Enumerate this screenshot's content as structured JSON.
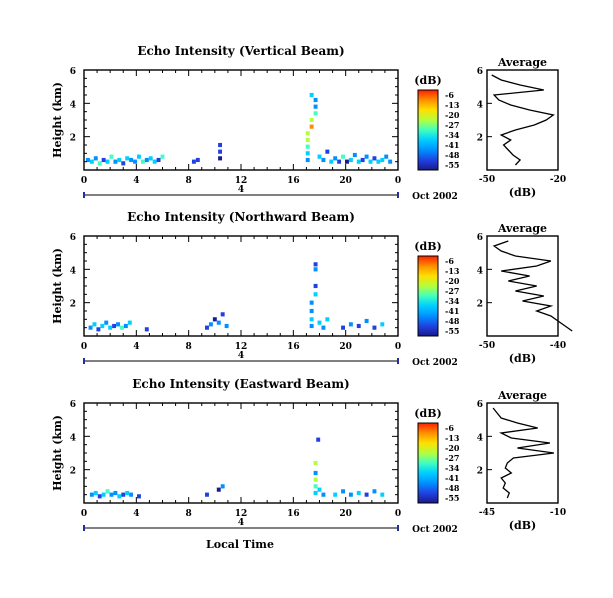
{
  "figure": {
    "xlabel": "Local Time",
    "colorbar_unit": "(dB)",
    "colorbar_ticks": [
      "-6",
      "-13",
      "-20",
      "-27",
      "-34",
      "-41",
      "-48",
      "-55"
    ],
    "colormap": [
      "#ff2000",
      "#ff8c00",
      "#ffe000",
      "#b0ff40",
      "#40ffc0",
      "#00d0ff",
      "#0090ff",
      "#2040e0",
      "#1a1a8c"
    ],
    "date_label": "Oct 2002",
    "day_label": "4",
    "avg_title": "Average",
    "avg_xlabel": "(dB)"
  },
  "chart_data": [
    {
      "type": "heatmap",
      "title": "Echo Intensity (Vertical Beam)",
      "ylabel": "Height (km)",
      "xlim": [
        0,
        24
      ],
      "ylim": [
        0,
        6
      ],
      "xticks": [
        "0",
        "4",
        "8",
        "12",
        "16",
        "20",
        "0"
      ],
      "yticks": [
        "6",
        "4",
        "2"
      ],
      "clim": [
        -55,
        -6
      ],
      "cells": [
        [
          0.3,
          0.6,
          -45
        ],
        [
          0.6,
          0.5,
          -35
        ],
        [
          0.9,
          0.7,
          -40
        ],
        [
          1.2,
          0.4,
          -30
        ],
        [
          1.5,
          0.6,
          -48
        ],
        [
          1.8,
          0.5,
          -38
        ],
        [
          2.1,
          0.8,
          -33
        ],
        [
          2.4,
          0.5,
          -42
        ],
        [
          2.7,
          0.6,
          -36
        ],
        [
          3.0,
          0.4,
          -50
        ],
        [
          3.3,
          0.7,
          -34
        ],
        [
          3.6,
          0.6,
          -40
        ],
        [
          3.9,
          0.5,
          -44
        ],
        [
          4.2,
          0.8,
          -37
        ],
        [
          4.5,
          0.5,
          -31
        ],
        [
          4.8,
          0.6,
          -45
        ],
        [
          5.1,
          0.7,
          -39
        ],
        [
          5.4,
          0.5,
          -35
        ],
        [
          5.7,
          0.6,
          -47
        ],
        [
          6.0,
          0.8,
          -33
        ],
        [
          8.4,
          0.5,
          -50
        ],
        [
          8.7,
          0.6,
          -46
        ],
        [
          10.4,
          0.7,
          -52
        ],
        [
          10.4,
          1.1,
          -50
        ],
        [
          10.4,
          1.5,
          -47
        ],
        [
          17.1,
          0.6,
          -42
        ],
        [
          17.1,
          1.0,
          -37
        ],
        [
          17.1,
          1.4,
          -30
        ],
        [
          17.1,
          1.8,
          -27
        ],
        [
          17.1,
          2.2,
          -22
        ],
        [
          17.4,
          2.6,
          -15
        ],
        [
          17.4,
          3.0,
          -25
        ],
        [
          17.7,
          3.4,
          -33
        ],
        [
          17.7,
          3.8,
          -40
        ],
        [
          17.7,
          4.2,
          -45
        ],
        [
          17.4,
          4.5,
          -38
        ],
        [
          18.0,
          0.8,
          -36
        ],
        [
          18.3,
          0.6,
          -43
        ],
        [
          18.6,
          1.1,
          -48
        ],
        [
          18.9,
          0.5,
          -35
        ],
        [
          19.2,
          0.7,
          -40
        ],
        [
          19.5,
          0.5,
          -46
        ],
        [
          19.8,
          0.8,
          -33
        ],
        [
          20.1,
          0.5,
          -52
        ],
        [
          20.4,
          0.6,
          -38
        ],
        [
          20.7,
          0.9,
          -44
        ],
        [
          21.0,
          0.5,
          -35
        ],
        [
          21.3,
          0.6,
          -50
        ],
        [
          21.6,
          0.8,
          -41
        ],
        [
          21.9,
          0.5,
          -36
        ],
        [
          22.2,
          0.7,
          -48
        ],
        [
          22.5,
          0.5,
          -39
        ],
        [
          22.8,
          0.6,
          -34
        ],
        [
          23.1,
          0.8,
          -45
        ],
        [
          23.4,
          0.5,
          -40
        ]
      ],
      "average": {
        "xlim": [
          -50,
          -20
        ],
        "xticks": [
          "-50",
          "-20"
        ],
        "yticks": [
          "6",
          "4",
          "2"
        ],
        "profile": [
          [
            0.3,
            -38
          ],
          [
            0.6,
            -36
          ],
          [
            0.9,
            -39
          ],
          [
            1.2,
            -41
          ],
          [
            1.5,
            -43
          ],
          [
            1.8,
            -40
          ],
          [
            2.1,
            -44
          ],
          [
            2.4,
            -38
          ],
          [
            2.7,
            -30
          ],
          [
            3.0,
            -25
          ],
          [
            3.3,
            -22
          ],
          [
            3.6,
            -32
          ],
          [
            3.9,
            -40
          ],
          [
            4.2,
            -45
          ],
          [
            4.5,
            -47
          ],
          [
            4.8,
            -26
          ],
          [
            5.1,
            -36
          ],
          [
            5.4,
            -44
          ],
          [
            5.7,
            -48
          ]
        ]
      }
    },
    {
      "type": "heatmap",
      "title": "Echo Intensity (Northward Beam)",
      "ylabel": "Height (km)",
      "xlim": [
        0,
        24
      ],
      "ylim": [
        0,
        6
      ],
      "xticks": [
        "0",
        "4",
        "8",
        "12",
        "16",
        "20",
        "0"
      ],
      "yticks": [
        "6",
        "4",
        "2"
      ],
      "clim": [
        -55,
        -6
      ],
      "cells": [
        [
          0.5,
          0.5,
          -45
        ],
        [
          0.8,
          0.7,
          -38
        ],
        [
          1.1,
          0.4,
          -50
        ],
        [
          1.4,
          0.6,
          -35
        ],
        [
          1.7,
          0.8,
          -41
        ],
        [
          2.0,
          0.5,
          -36
        ],
        [
          2.3,
          0.6,
          -47
        ],
        [
          2.6,
          0.7,
          -40
        ],
        [
          2.9,
          0.5,
          -33
        ],
        [
          3.2,
          0.6,
          -44
        ],
        [
          3.5,
          0.8,
          -38
        ],
        [
          4.8,
          0.4,
          -50
        ],
        [
          9.4,
          0.5,
          -48
        ],
        [
          9.7,
          0.7,
          -45
        ],
        [
          10.0,
          1.0,
          -52
        ],
        [
          10.3,
          0.8,
          -40
        ],
        [
          10.6,
          1.3,
          -47
        ],
        [
          10.9,
          0.6,
          -43
        ],
        [
          17.4,
          0.6,
          -40
        ],
        [
          17.4,
          1.0,
          -36
        ],
        [
          17.4,
          1.5,
          -41
        ],
        [
          17.4,
          2.0,
          -45
        ],
        [
          17.7,
          2.5,
          -38
        ],
        [
          17.7,
          3.0,
          -48
        ],
        [
          17.7,
          4.0,
          -44
        ],
        [
          17.7,
          4.3,
          -50
        ],
        [
          18.0,
          0.8,
          -34
        ],
        [
          18.3,
          0.5,
          -44
        ],
        [
          18.6,
          1.0,
          -38
        ],
        [
          19.8,
          0.5,
          -46
        ],
        [
          20.4,
          0.7,
          -40
        ],
        [
          21.0,
          0.6,
          -51
        ],
        [
          21.6,
          0.9,
          -42
        ],
        [
          22.2,
          0.5,
          -48
        ],
        [
          22.8,
          0.7,
          -37
        ]
      ],
      "average": {
        "xlim": [
          -50,
          -40
        ],
        "xticks": [
          "-50",
          "-40"
        ],
        "yticks": [
          "6",
          "4",
          "2"
        ],
        "profile": [
          [
            0.3,
            -38
          ],
          [
            0.6,
            -39
          ],
          [
            0.9,
            -40
          ],
          [
            1.2,
            -41
          ],
          [
            1.5,
            -43
          ],
          [
            1.8,
            -41
          ],
          [
            2.1,
            -45
          ],
          [
            2.4,
            -42
          ],
          [
            2.7,
            -46
          ],
          [
            3.0,
            -43
          ],
          [
            3.3,
            -47
          ],
          [
            3.6,
            -44
          ],
          [
            3.9,
            -48
          ],
          [
            4.2,
            -43
          ],
          [
            4.5,
            -41
          ],
          [
            4.8,
            -46
          ],
          [
            5.1,
            -48
          ],
          [
            5.4,
            -49
          ],
          [
            5.7,
            -47
          ]
        ]
      }
    },
    {
      "type": "heatmap",
      "title": "Echo Intensity (Eastward Beam)",
      "ylabel": "Height (km)",
      "xlim": [
        0,
        24
      ],
      "ylim": [
        0,
        6
      ],
      "xticks": [
        "0",
        "4",
        "8",
        "12",
        "16",
        "20",
        "0"
      ],
      "yticks": [
        "6",
        "4",
        "2"
      ],
      "clim": [
        -55,
        -6
      ],
      "cells": [
        [
          0.6,
          0.5,
          -42
        ],
        [
          0.9,
          0.6,
          -36
        ],
        [
          1.2,
          0.4,
          -48
        ],
        [
          1.5,
          0.5,
          -38
        ],
        [
          1.8,
          0.7,
          -33
        ],
        [
          2.1,
          0.5,
          -45
        ],
        [
          2.4,
          0.6,
          -40
        ],
        [
          2.7,
          0.4,
          -35
        ],
        [
          3.0,
          0.5,
          -47
        ],
        [
          3.3,
          0.6,
          -39
        ],
        [
          3.6,
          0.5,
          -43
        ],
        [
          4.2,
          0.4,
          -50
        ],
        [
          9.4,
          0.5,
          -48
        ],
        [
          10.3,
          0.8,
          -52
        ],
        [
          10.6,
          1.0,
          -45
        ],
        [
          17.7,
          0.6,
          -36
        ],
        [
          17.7,
          1.0,
          -30
        ],
        [
          17.7,
          1.4,
          -27
        ],
        [
          17.7,
          1.8,
          -40
        ],
        [
          17.7,
          2.4,
          -22
        ],
        [
          18.0,
          0.8,
          -37
        ],
        [
          18.3,
          0.5,
          -44
        ],
        [
          17.9,
          3.8,
          -48
        ],
        [
          19.2,
          0.5,
          -38
        ],
        [
          19.8,
          0.7,
          -45
        ],
        [
          20.4,
          0.5,
          -40
        ],
        [
          21.0,
          0.6,
          -35
        ],
        [
          21.6,
          0.5,
          -47
        ],
        [
          22.2,
          0.7,
          -41
        ],
        [
          22.8,
          0.5,
          -36
        ]
      ],
      "average": {
        "xlim": [
          -45,
          -10
        ],
        "xticks": [
          "-45",
          "-10"
        ],
        "yticks": [
          "6",
          "4",
          "2"
        ],
        "profile": [
          [
            0.3,
            -35
          ],
          [
            0.6,
            -34
          ],
          [
            0.9,
            -37
          ],
          [
            1.2,
            -36
          ],
          [
            1.5,
            -38
          ],
          [
            1.8,
            -33
          ],
          [
            2.1,
            -36
          ],
          [
            2.4,
            -35
          ],
          [
            2.7,
            -32
          ],
          [
            3.0,
            -12
          ],
          [
            3.3,
            -30
          ],
          [
            3.6,
            -14
          ],
          [
            3.9,
            -33
          ],
          [
            4.2,
            -38
          ],
          [
            4.5,
            -20
          ],
          [
            4.8,
            -30
          ],
          [
            5.1,
            -38
          ],
          [
            5.4,
            -40
          ],
          [
            5.7,
            -42
          ]
        ]
      }
    }
  ]
}
